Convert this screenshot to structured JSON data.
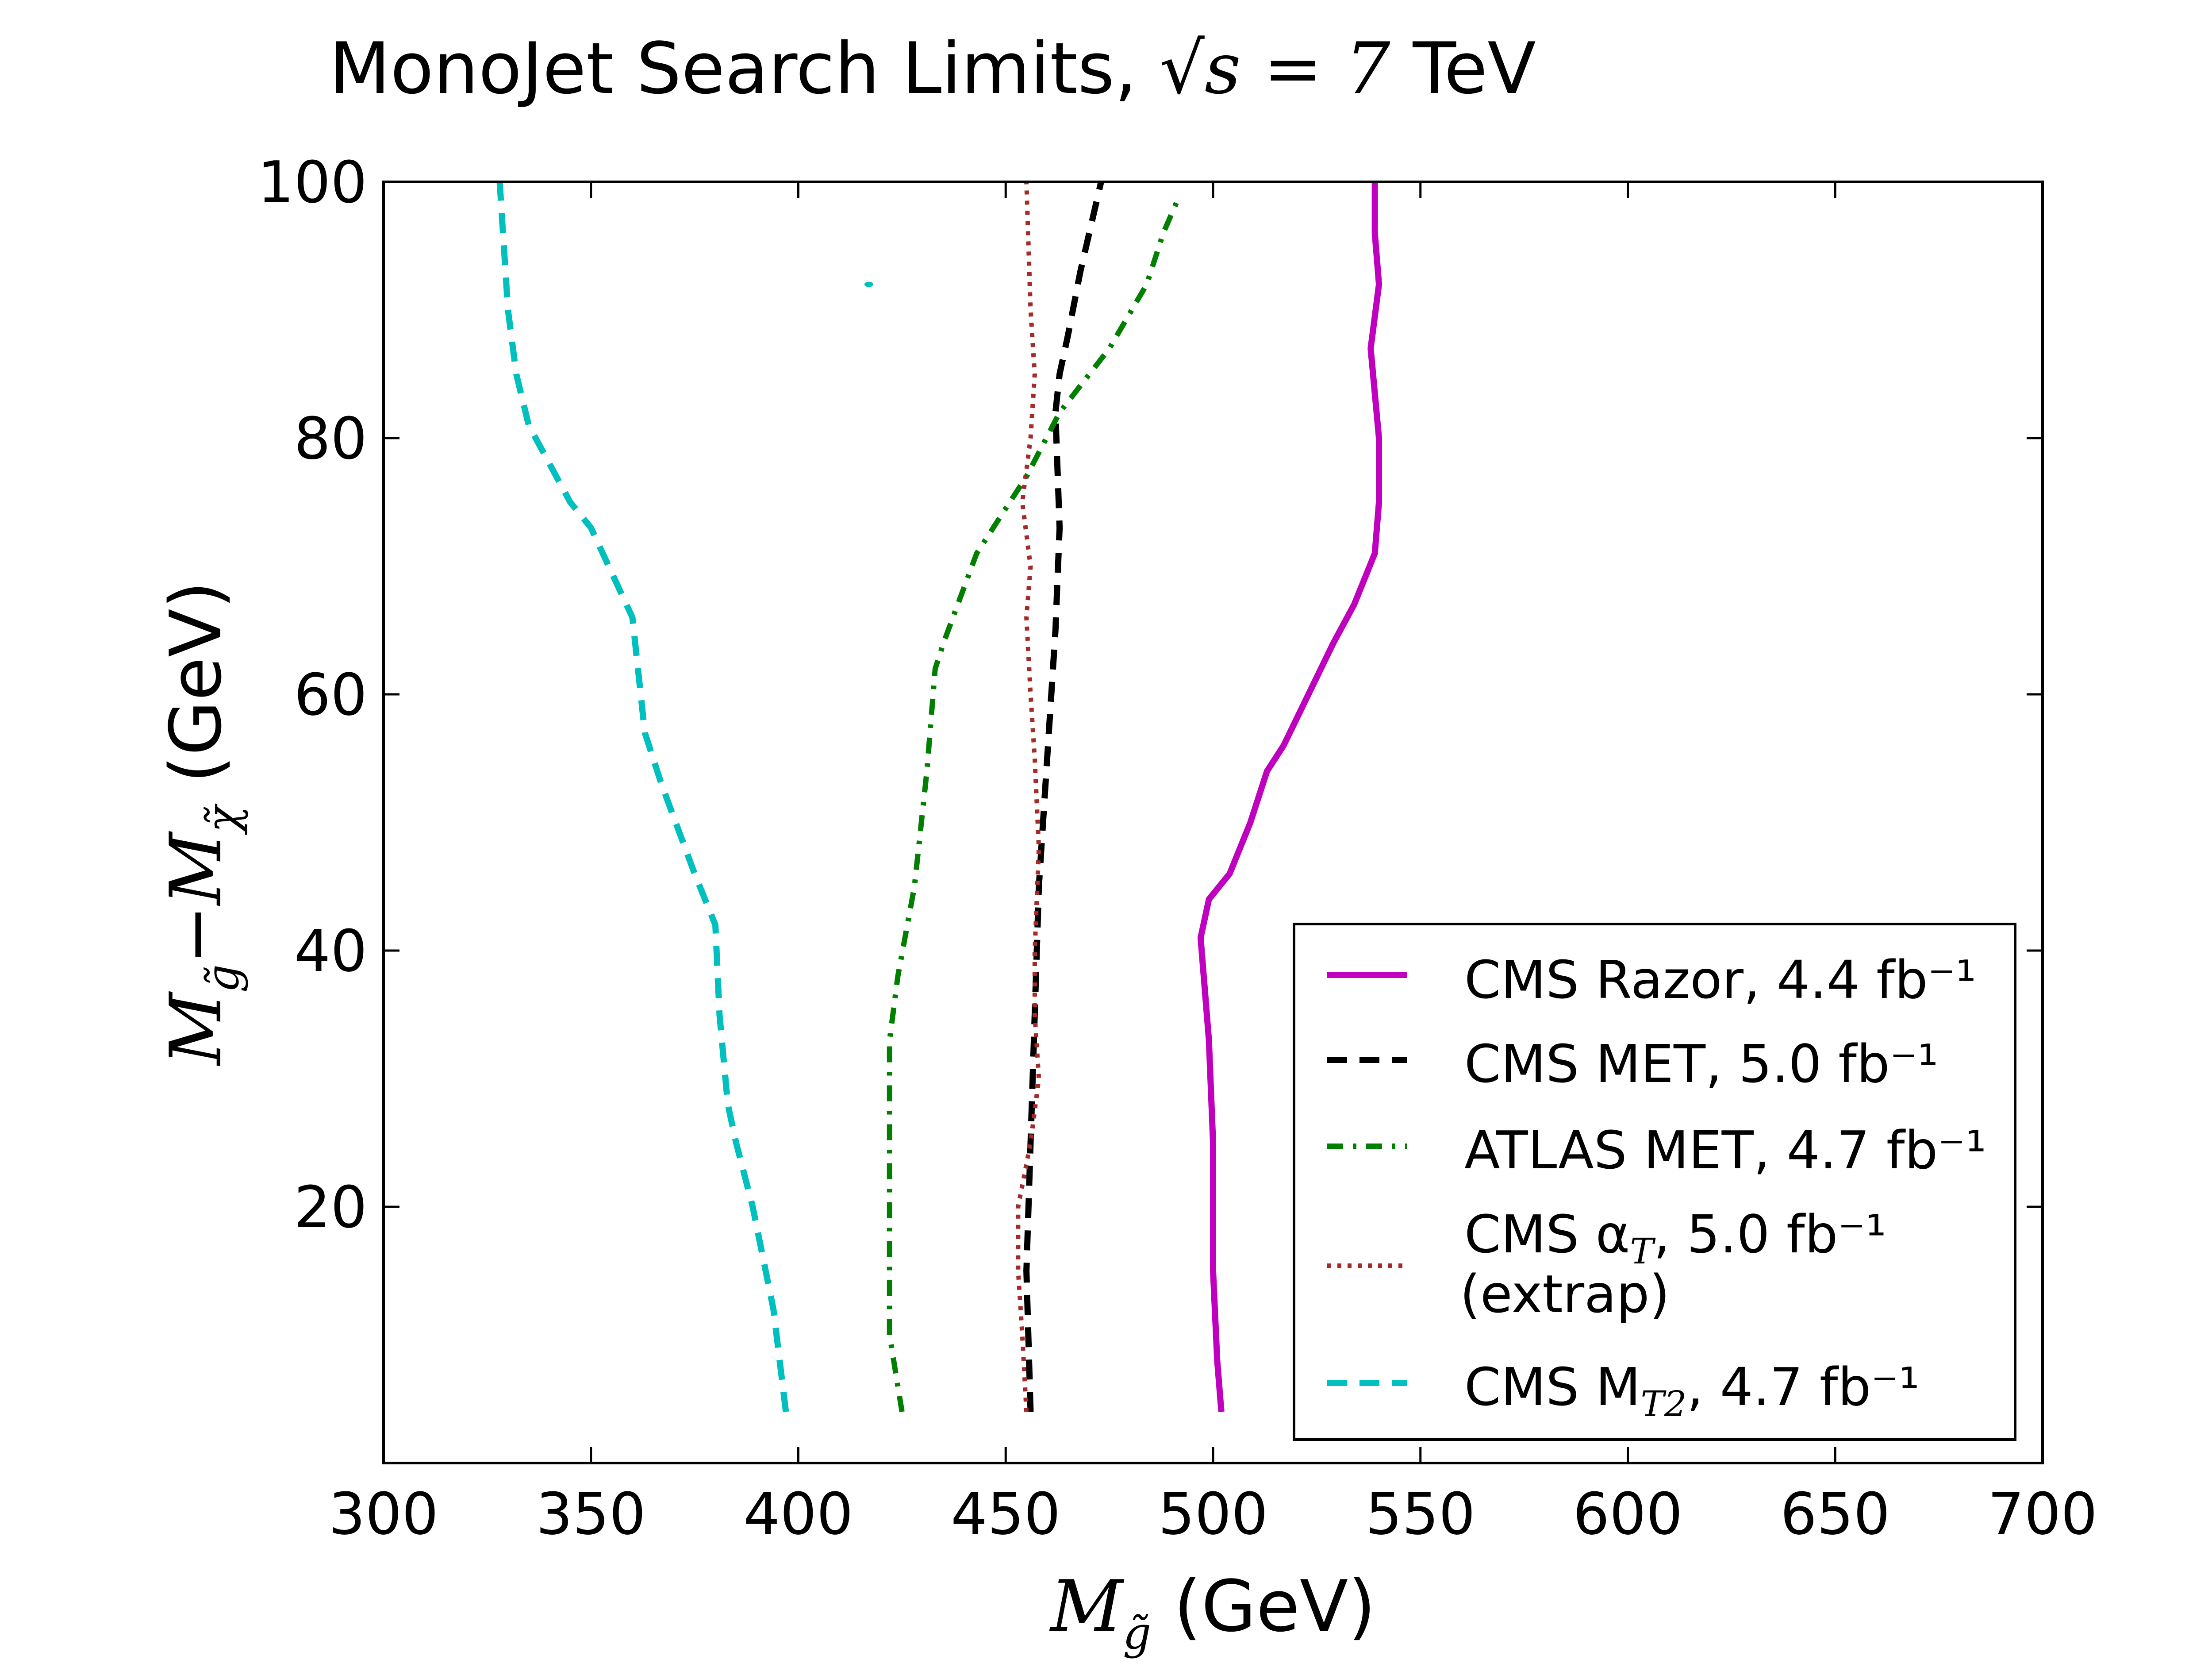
{
  "chart_data": {
    "type": "line",
    "title": {
      "prefix": "MonoJet Search Limits, ",
      "math": "√s = 7",
      "suffix": " TeV"
    },
    "xlabel": {
      "symbol": "M",
      "sub": "g̃",
      "unit": " (GeV)"
    },
    "ylabel": {
      "m1": "M",
      "sub1": "g̃",
      "op": "−",
      "m2": "M",
      "sub2": "χ̃",
      "unit": " (GeV)"
    },
    "xlim": [
      300,
      700
    ],
    "ylim": [
      0,
      100
    ],
    "xticks": [
      300,
      350,
      400,
      450,
      500,
      550,
      600,
      650,
      700
    ],
    "yticks": [
      20,
      40,
      60,
      80,
      100
    ],
    "grid": false,
    "legend_position": "lower-right",
    "series": [
      {
        "name": "CMS Razor, 4.4 fb⁻¹",
        "color": "#bf00bf",
        "style": "solid",
        "x": [
          502,
          501,
          500,
          500,
          499,
          498,
          497,
          499,
          504,
          509,
          513,
          517,
          529,
          534,
          539,
          540,
          540,
          538,
          540,
          539,
          539
        ],
        "y": [
          4,
          8,
          15,
          25,
          33,
          37,
          41,
          44,
          46,
          50,
          54,
          56,
          64,
          67,
          71,
          75,
          80,
          87,
          92,
          96,
          100
        ]
      },
      {
        "name": "CMS MET, 5.0 fb⁻¹",
        "color": "#000000",
        "style": "dashed",
        "x": [
          456,
          455,
          456,
          457,
          458,
          460,
          462,
          463,
          462,
          463,
          465,
          468,
          473
        ],
        "y": [
          4,
          15,
          25,
          35,
          45,
          55,
          65,
          73,
          82,
          85,
          88,
          93,
          100
        ]
      },
      {
        "name": "ATLAS MET, 4.7 fb⁻¹",
        "color": "#007f00",
        "style": "dashdot",
        "x": [
          425,
          422,
          422,
          422,
          424,
          428,
          431,
          433,
          435,
          443,
          455,
          463,
          475,
          484,
          488,
          492
        ],
        "y": [
          4,
          10,
          20,
          33,
          38,
          45,
          54,
          62,
          64,
          71,
          77,
          82,
          87,
          92,
          96,
          99
        ]
      },
      {
        "name": "CMS α",
        "name_sub": "T",
        "name_rest": ", 5.0 fb⁻¹",
        "name_line2": "(extrap)",
        "color": "#a52a2a",
        "style": "dotted",
        "x": [
          455,
          454,
          453,
          453,
          456,
          458,
          457,
          457,
          458,
          457,
          456,
          455,
          456,
          454,
          456,
          457,
          456,
          455
        ],
        "y": [
          4,
          10,
          15,
          20,
          25,
          30,
          35,
          40,
          48,
          55,
          60,
          66,
          70,
          75,
          80,
          85,
          90,
          100
        ]
      },
      {
        "name": "CMS M",
        "name_sub": "T2",
        "name_rest": ", 4.7 fb⁻¹",
        "color": "#00bfbf",
        "style": "dashed",
        "x": [
          397,
          394,
          389,
          385,
          383,
          381,
          380,
          375,
          367,
          363,
          360,
          350,
          345,
          340,
          335,
          332,
          330,
          329,
          328
        ],
        "y": [
          4,
          12,
          20,
          25,
          28,
          35,
          42,
          46,
          53,
          57,
          66,
          73,
          75,
          78,
          81,
          85,
          90,
          95,
          100
        ]
      }
    ],
    "annotation_point": {
      "x": 417,
      "y": 92,
      "color": "#00bfbf"
    }
  }
}
